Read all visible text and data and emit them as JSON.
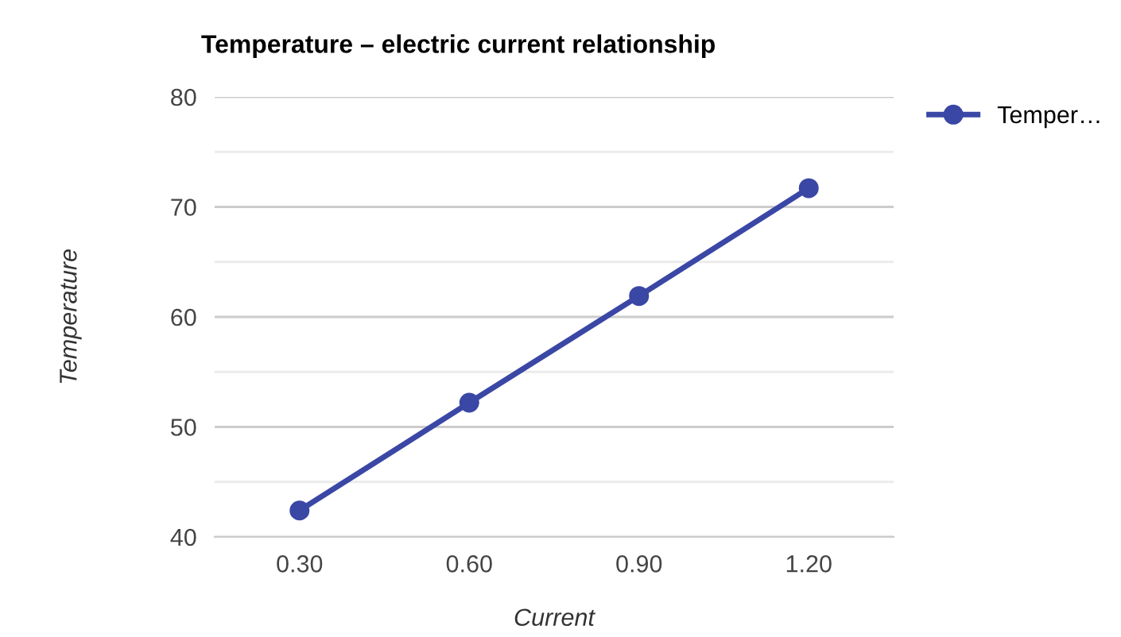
{
  "chart_data": {
    "type": "line",
    "title": "Temperature – electric current relationship",
    "xlabel": "Current",
    "ylabel": "Temperature",
    "x": [
      0.3,
      0.6,
      0.9,
      1.2
    ],
    "series": [
      {
        "name": "Temper…",
        "color": "#3a47a5",
        "values": [
          42.4,
          52.2,
          61.9,
          71.7
        ]
      }
    ],
    "xlim": [
      0.15,
      1.35
    ],
    "xticks": [
      {
        "value": 0.3,
        "label": "0.30"
      },
      {
        "value": 0.6,
        "label": "0.60"
      },
      {
        "value": 0.9,
        "label": "0.90"
      },
      {
        "value": 1.2,
        "label": "1.20"
      }
    ],
    "ylim": [
      40,
      80
    ],
    "yticks": [
      40,
      {
        "value": 45,
        "label": null
      },
      50,
      {
        "value": 55,
        "label": null
      },
      60,
      {
        "value": 65,
        "label": null
      },
      70,
      {
        "value": 75,
        "label": null
      },
      80
    ],
    "grid": "y",
    "legend": "top right",
    "marker": "circle",
    "line_style": "solid"
  }
}
